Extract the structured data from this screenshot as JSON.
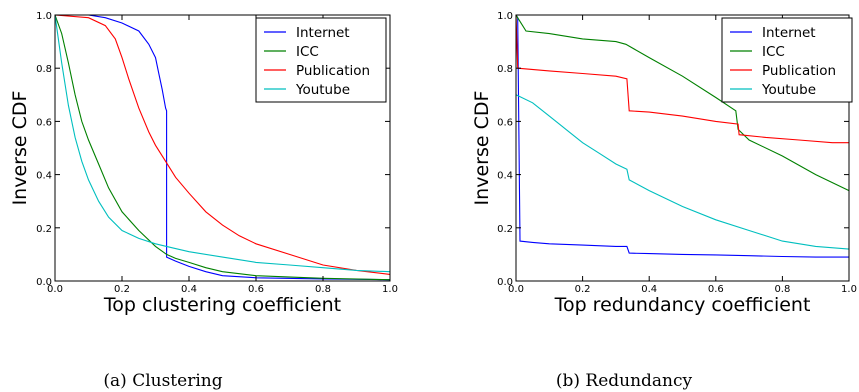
{
  "chart_data": [
    {
      "type": "line",
      "title": "",
      "xlabel": "Top clustering coefficient",
      "ylabel": "Inverse CDF",
      "xlim": [
        0,
        1
      ],
      "ylim": [
        0,
        1
      ],
      "xticks": [
        "0.0",
        "0.2",
        "0.4",
        "0.6",
        "0.8",
        "1.0"
      ],
      "yticks": [
        "0.0",
        "0.2",
        "0.4",
        "0.6",
        "0.8",
        "1.0"
      ],
      "legend_position": "top-right",
      "caption": "(a) Clustering",
      "series": [
        {
          "name": "Internet",
          "color": "#0000ff",
          "points": [
            [
              0,
              1.0
            ],
            [
              0.1,
              1.0
            ],
            [
              0.15,
              0.99
            ],
            [
              0.2,
              0.97
            ],
            [
              0.25,
              0.94
            ],
            [
              0.28,
              0.89
            ],
            [
              0.3,
              0.84
            ],
            [
              0.31,
              0.78
            ],
            [
              0.32,
              0.72
            ],
            [
              0.33,
              0.65
            ],
            [
              0.333,
              0.64
            ],
            [
              0.333,
              0.09
            ],
            [
              0.36,
              0.075
            ],
            [
              0.4,
              0.055
            ],
            [
              0.45,
              0.035
            ],
            [
              0.5,
              0.02
            ],
            [
              0.6,
              0.012
            ],
            [
              0.8,
              0.008
            ],
            [
              1.0,
              0.005
            ]
          ]
        },
        {
          "name": "ICC",
          "color": "#008000",
          "points": [
            [
              0,
              1.0
            ],
            [
              0.02,
              0.93
            ],
            [
              0.04,
              0.82
            ],
            [
              0.06,
              0.7
            ],
            [
              0.08,
              0.6
            ],
            [
              0.1,
              0.53
            ],
            [
              0.13,
              0.44
            ],
            [
              0.16,
              0.35
            ],
            [
              0.2,
              0.26
            ],
            [
              0.25,
              0.19
            ],
            [
              0.3,
              0.13
            ],
            [
              0.333,
              0.1
            ],
            [
              0.36,
              0.085
            ],
            [
              0.4,
              0.07
            ],
            [
              0.45,
              0.05
            ],
            [
              0.5,
              0.035
            ],
            [
              0.6,
              0.02
            ],
            [
              0.8,
              0.01
            ],
            [
              1.0,
              0.005
            ]
          ]
        },
        {
          "name": "Publication",
          "color": "#ff0000",
          "points": [
            [
              0,
              1.0
            ],
            [
              0.1,
              0.99
            ],
            [
              0.15,
              0.96
            ],
            [
              0.18,
              0.91
            ],
            [
              0.2,
              0.84
            ],
            [
              0.22,
              0.76
            ],
            [
              0.25,
              0.65
            ],
            [
              0.28,
              0.56
            ],
            [
              0.3,
              0.51
            ],
            [
              0.33,
              0.45
            ],
            [
              0.36,
              0.39
            ],
            [
              0.4,
              0.33
            ],
            [
              0.45,
              0.26
            ],
            [
              0.5,
              0.21
            ],
            [
              0.55,
              0.17
            ],
            [
              0.6,
              0.14
            ],
            [
              0.7,
              0.1
            ],
            [
              0.8,
              0.06
            ],
            [
              0.9,
              0.04
            ],
            [
              1.0,
              0.025
            ]
          ]
        },
        {
          "name": "Youtube",
          "color": "#00bfbf",
          "points": [
            [
              0,
              1.0
            ],
            [
              0.02,
              0.82
            ],
            [
              0.04,
              0.66
            ],
            [
              0.06,
              0.54
            ],
            [
              0.08,
              0.45
            ],
            [
              0.1,
              0.38
            ],
            [
              0.13,
              0.3
            ],
            [
              0.16,
              0.24
            ],
            [
              0.2,
              0.19
            ],
            [
              0.25,
              0.16
            ],
            [
              0.3,
              0.14
            ],
            [
              0.35,
              0.125
            ],
            [
              0.4,
              0.11
            ],
            [
              0.5,
              0.09
            ],
            [
              0.6,
              0.07
            ],
            [
              0.7,
              0.06
            ],
            [
              0.8,
              0.05
            ],
            [
              0.9,
              0.04
            ],
            [
              1.0,
              0.035
            ]
          ]
        }
      ]
    },
    {
      "type": "line",
      "title": "",
      "xlabel": "Top redundancy coefficient",
      "ylabel": "Inverse CDF",
      "xlim": [
        0,
        1
      ],
      "ylim": [
        0,
        1
      ],
      "xticks": [
        "0.0",
        "0.2",
        "0.4",
        "0.6",
        "0.8",
        "1.0"
      ],
      "yticks": [
        "0.0",
        "0.2",
        "0.4",
        "0.6",
        "0.8",
        "1.0"
      ],
      "legend_position": "top-right",
      "caption": "(b) Redundancy",
      "series": [
        {
          "name": "Internet",
          "color": "#0000ff",
          "points": [
            [
              0,
              1.0
            ],
            [
              0.005,
              0.99
            ],
            [
              0.012,
              0.15
            ],
            [
              0.05,
              0.145
            ],
            [
              0.1,
              0.14
            ],
            [
              0.2,
              0.135
            ],
            [
              0.3,
              0.13
            ],
            [
              0.333,
              0.13
            ],
            [
              0.34,
              0.105
            ],
            [
              0.4,
              0.103
            ],
            [
              0.5,
              0.1
            ],
            [
              0.6,
              0.098
            ],
            [
              0.7,
              0.095
            ],
            [
              0.8,
              0.092
            ],
            [
              0.9,
              0.09
            ],
            [
              1.0,
              0.09
            ]
          ]
        },
        {
          "name": "ICC",
          "color": "#008000",
          "points": [
            [
              0,
              1.0
            ],
            [
              0.01,
              0.98
            ],
            [
              0.03,
              0.94
            ],
            [
              0.1,
              0.93
            ],
            [
              0.2,
              0.91
            ],
            [
              0.3,
              0.9
            ],
            [
              0.33,
              0.89
            ],
            [
              0.4,
              0.84
            ],
            [
              0.5,
              0.77
            ],
            [
              0.6,
              0.69
            ],
            [
              0.66,
              0.64
            ],
            [
              0.667,
              0.57
            ],
            [
              0.7,
              0.53
            ],
            [
              0.8,
              0.47
            ],
            [
              0.9,
              0.4
            ],
            [
              1.0,
              0.34
            ]
          ]
        },
        {
          "name": "Publication",
          "color": "#ff0000",
          "points": [
            [
              0,
              1.0
            ],
            [
              0.005,
              0.8
            ],
            [
              0.1,
              0.79
            ],
            [
              0.2,
              0.78
            ],
            [
              0.3,
              0.77
            ],
            [
              0.333,
              0.76
            ],
            [
              0.34,
              0.64
            ],
            [
              0.4,
              0.635
            ],
            [
              0.5,
              0.62
            ],
            [
              0.6,
              0.6
            ],
            [
              0.667,
              0.59
            ],
            [
              0.67,
              0.55
            ],
            [
              0.75,
              0.54
            ],
            [
              0.85,
              0.53
            ],
            [
              0.95,
              0.52
            ],
            [
              1.0,
              0.52
            ]
          ]
        },
        {
          "name": "Youtube",
          "color": "#00bfbf",
          "points": [
            [
              0,
              0.7
            ],
            [
              0.05,
              0.67
            ],
            [
              0.1,
              0.62
            ],
            [
              0.15,
              0.57
            ],
            [
              0.2,
              0.52
            ],
            [
              0.25,
              0.48
            ],
            [
              0.3,
              0.44
            ],
            [
              0.333,
              0.42
            ],
            [
              0.34,
              0.38
            ],
            [
              0.4,
              0.34
            ],
            [
              0.5,
              0.28
            ],
            [
              0.6,
              0.23
            ],
            [
              0.7,
              0.19
            ],
            [
              0.8,
              0.15
            ],
            [
              0.9,
              0.13
            ],
            [
              1.0,
              0.12
            ]
          ]
        }
      ]
    }
  ]
}
